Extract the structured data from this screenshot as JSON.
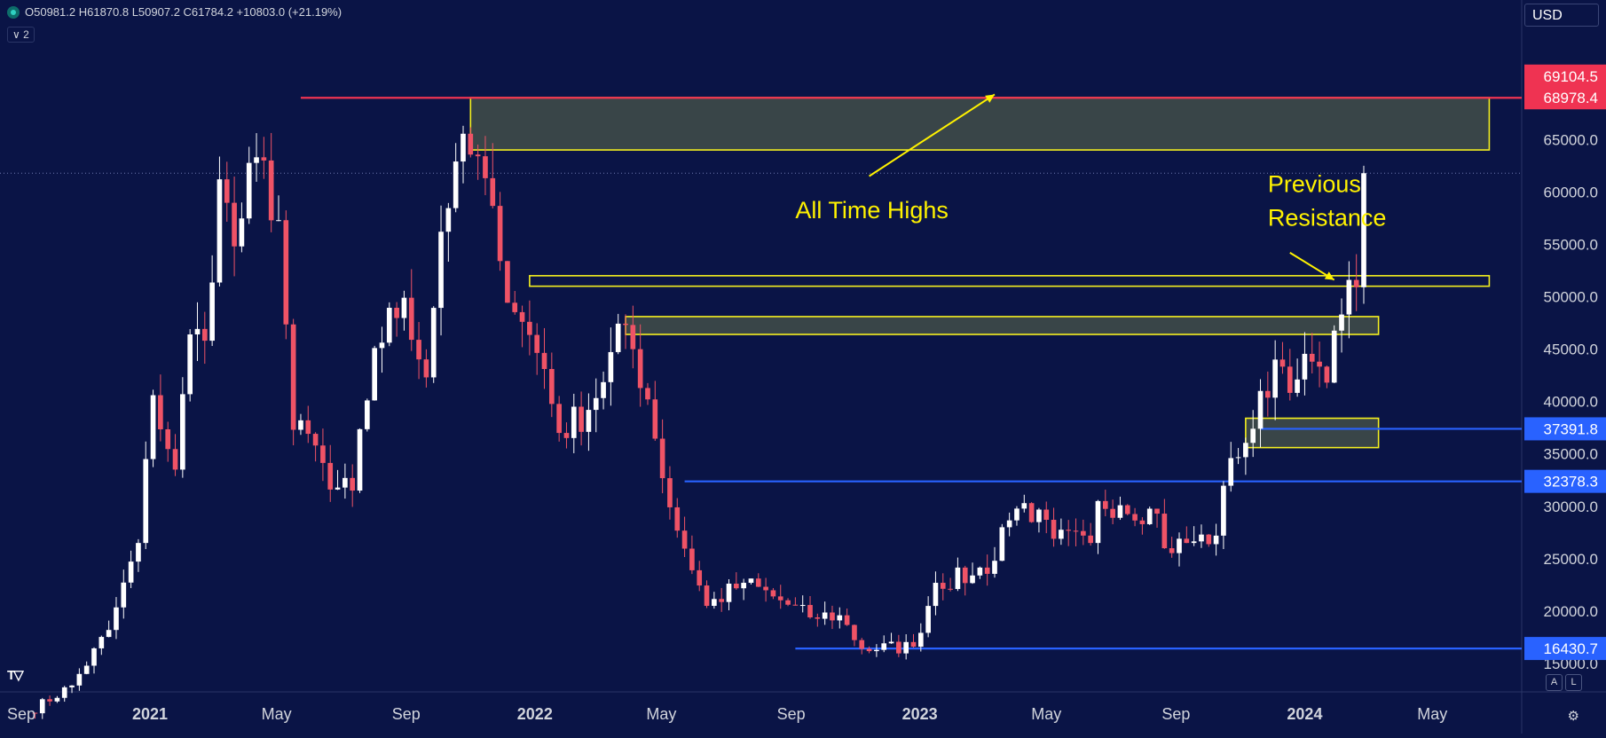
{
  "header": {
    "ohlc_label": "O50981.2 H61870.8 L50907.2 C61784.2 +10803.0 (+21.19%)",
    "indicator_badge": "∨ 2",
    "currency": "USD"
  },
  "footer": {
    "auto_label": "A",
    "log_label": "L"
  },
  "chart_data": {
    "type": "candlestick",
    "title": "",
    "timeframe_label": "",
    "xlabel": "",
    "ylabel": "",
    "ylim": [
      10000,
      72000
    ],
    "x_ticks": [
      "Sep",
      "2021",
      "May",
      "Sep",
      "2022",
      "May",
      "Sep",
      "2023",
      "May",
      "Sep",
      "2024",
      "May"
    ],
    "x_tick_dates": [
      "2020-09-01",
      "2021-01-01",
      "2021-05-01",
      "2021-09-01",
      "2022-01-01",
      "2022-05-01",
      "2022-09-01",
      "2023-01-01",
      "2023-05-01",
      "2023-09-01",
      "2024-01-01",
      "2024-05-01"
    ],
    "y_ticks": [
      15000,
      20000,
      25000,
      30000,
      35000,
      40000,
      45000,
      50000,
      55000,
      60000,
      65000
    ],
    "y_tick_labels": [
      "15000.0",
      "20000.0",
      "25000.0",
      "30000.0",
      "35000.0",
      "40000.0",
      "45000.0",
      "50000.0",
      "55000.0",
      "60000.0",
      "65000.0"
    ],
    "colors": {
      "up": "#ffffff",
      "down": "#ef5366",
      "background": "#0a1446",
      "zone_border": "#f5f01f",
      "zone_fill": "#3e4a48",
      "red_line": "#ef3352",
      "blue_line": "#2962ff",
      "annotation": "#fff200"
    },
    "last_close": 61784.2,
    "waypoints": [
      [
        "2020-09-07",
        10300
      ],
      [
        "2020-10-19",
        12900
      ],
      [
        "2020-11-23",
        18200
      ],
      [
        "2020-12-21",
        26500
      ],
      [
        "2021-01-04",
        40600
      ],
      [
        "2021-01-25",
        33500
      ],
      [
        "2021-02-08",
        46400
      ],
      [
        "2021-02-22",
        45800
      ],
      [
        "2021-03-08",
        61200
      ],
      [
        "2021-03-22",
        54800
      ],
      [
        "2021-04-12",
        63300
      ],
      [
        "2021-05-03",
        57300
      ],
      [
        "2021-05-17",
        37300
      ],
      [
        "2021-06-07",
        35800
      ],
      [
        "2021-06-21",
        31600
      ],
      [
        "2021-07-12",
        31500
      ],
      [
        "2021-08-02",
        45100
      ],
      [
        "2021-08-30",
        49900
      ],
      [
        "2021-09-20",
        42300
      ],
      [
        "2021-10-04",
        56200
      ],
      [
        "2021-10-18",
        62900
      ],
      [
        "2021-11-08",
        63400
      ],
      [
        "2021-11-29",
        53400
      ],
      [
        "2021-12-20",
        47600
      ],
      [
        "2022-01-10",
        43100
      ],
      [
        "2022-01-24",
        37000
      ],
      [
        "2022-02-21",
        39200
      ],
      [
        "2022-03-28",
        47300
      ],
      [
        "2022-04-18",
        40200
      ],
      [
        "2022-05-09",
        29900
      ],
      [
        "2022-06-13",
        20500
      ],
      [
        "2022-07-18",
        22700
      ],
      [
        "2022-08-15",
        21400
      ],
      [
        "2022-09-19",
        19400
      ],
      [
        "2022-10-17",
        19600
      ],
      [
        "2022-11-07",
        16400
      ],
      [
        "2022-12-26",
        16600
      ],
      [
        "2023-01-16",
        22700
      ],
      [
        "2023-02-20",
        23400
      ],
      [
        "2023-03-13",
        24800
      ],
      [
        "2023-03-20",
        28000
      ],
      [
        "2023-04-10",
        30300
      ],
      [
        "2023-05-08",
        26900
      ],
      [
        "2023-06-12",
        26500
      ],
      [
        "2023-06-19",
        30500
      ],
      [
        "2023-07-10",
        30100
      ],
      [
        "2023-08-14",
        29300
      ],
      [
        "2023-08-21",
        26000
      ],
      [
        "2023-09-11",
        26500
      ],
      [
        "2023-10-09",
        27200
      ],
      [
        "2023-10-23",
        34600
      ],
      [
        "2023-11-13",
        37400
      ],
      [
        "2023-12-04",
        44000
      ],
      [
        "2023-12-25",
        42100
      ],
      [
        "2024-01-08",
        43800
      ],
      [
        "2024-01-22",
        41800
      ],
      [
        "2024-02-05",
        48300
      ],
      [
        "2024-02-12",
        51600
      ],
      [
        "2024-02-19",
        50900
      ],
      [
        "2024-02-26",
        61784
      ]
    ],
    "price_labels": [
      {
        "value": 69104.5,
        "label": "69104.5",
        "color": "#ef3352"
      },
      {
        "value": 68978.4,
        "label": "68978.4",
        "color": "#ef3352"
      },
      {
        "value": 37391.8,
        "label": "37391.8",
        "color": "#2962ff"
      },
      {
        "value": 32378.3,
        "label": "32378.3",
        "color": "#2962ff"
      },
      {
        "value": 16430.7,
        "label": "16430.7",
        "color": "#2962ff"
      }
    ],
    "horizontal_lines": [
      {
        "value": 68978.4,
        "color": "#ef3352",
        "start": "2021-05-24"
      },
      {
        "value": 32378.3,
        "color": "#2962ff",
        "start": "2022-05-23"
      },
      {
        "value": 37391.8,
        "color": "#2962ff",
        "start": "2023-11-20"
      },
      {
        "value": 16430.7,
        "color": "#2962ff",
        "start": "2022-09-05"
      }
    ],
    "zones": [
      {
        "name": "all-time-highs-zone",
        "from": "2021-11-01",
        "to": "2024-06-24",
        "low": 64000,
        "high": 69000,
        "filled": true
      },
      {
        "name": "previous-resistance-zone",
        "from": "2021-12-27",
        "to": "2024-06-24",
        "low": 51000,
        "high": 52000,
        "filled": false
      },
      {
        "name": "mid-resistance-zone",
        "from": "2022-03-28",
        "to": "2024-03-11",
        "low": 46400,
        "high": 48100,
        "filled": true
      },
      {
        "name": "support-zone",
        "from": "2023-11-06",
        "to": "2024-03-11",
        "low": 35600,
        "high": 38400,
        "filled": true
      }
    ],
    "annotations": [
      {
        "text": "All Time Highs",
        "lines": [
          "All Time Highs"
        ],
        "at": "2022-09-05",
        "price": 57500,
        "arrow_from": [
          "2022-11-14",
          61500
        ],
        "arrow_to": [
          "2023-03-13",
          69300
        ]
      },
      {
        "text": "Previous Resistance",
        "lines": [
          "Previous",
          "Resistance"
        ],
        "at": "2023-11-27",
        "price": 60000,
        "arrow_from": [
          "2023-12-18",
          54200
        ],
        "arrow_to": [
          "2024-01-29",
          51600
        ]
      }
    ]
  }
}
